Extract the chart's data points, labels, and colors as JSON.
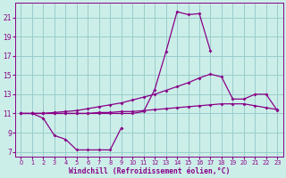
{
  "background_color": "#cceee8",
  "line_color": "#880088",
  "grid_color": "#99cccc",
  "xlabel": "Windchill (Refroidissement éolien,°C)",
  "xlim": [
    -0.5,
    23.5
  ],
  "ylim": [
    6.5,
    22.5
  ],
  "yticks": [
    7,
    9,
    11,
    13,
    15,
    17,
    19,
    21
  ],
  "xticks": [
    0,
    1,
    2,
    3,
    4,
    5,
    6,
    7,
    8,
    9,
    10,
    11,
    12,
    13,
    14,
    15,
    16,
    17,
    18,
    19,
    20,
    21,
    22,
    23
  ],
  "line1_x": [
    0,
    1,
    2,
    3,
    4,
    5,
    6,
    7,
    8,
    9,
    10,
    11,
    12,
    13,
    14,
    15,
    16,
    17
  ],
  "line1_y": [
    11.0,
    11.0,
    11.0,
    11.0,
    11.0,
    11.0,
    11.0,
    11.0,
    11.0,
    11.0,
    11.0,
    11.2,
    13.5,
    17.4,
    21.6,
    21.3,
    21.4,
    17.5
  ],
  "line2_x": [
    0,
    1,
    2,
    3,
    4,
    5,
    6,
    7,
    8,
    9,
    10,
    11,
    12,
    13,
    14,
    15,
    16,
    17,
    18,
    19,
    20,
    21,
    22,
    23
  ],
  "line2_y": [
    11.0,
    11.0,
    11.0,
    11.1,
    11.2,
    11.3,
    11.5,
    11.7,
    11.9,
    12.1,
    12.4,
    12.7,
    13.0,
    13.4,
    13.8,
    14.2,
    14.7,
    15.1,
    14.8,
    12.5,
    12.5,
    13.0,
    13.0,
    11.3
  ],
  "line3_x": [
    0,
    1,
    2,
    3,
    4,
    5,
    6,
    7,
    8,
    9,
    10,
    11,
    12,
    13,
    14,
    15,
    16,
    17,
    18,
    19,
    20,
    21,
    22,
    23
  ],
  "line3_y": [
    11.0,
    11.0,
    11.0,
    11.0,
    11.0,
    11.0,
    11.0,
    11.1,
    11.1,
    11.2,
    11.2,
    11.3,
    11.4,
    11.5,
    11.6,
    11.7,
    11.8,
    11.9,
    12.0,
    12.0,
    12.0,
    11.8,
    11.6,
    11.4
  ],
  "line4_x": [
    1,
    2,
    3,
    4,
    5,
    6,
    7,
    8,
    9
  ],
  "line4_y": [
    11.0,
    10.5,
    8.7,
    8.3,
    7.2,
    7.2,
    7.2,
    7.2,
    9.5
  ]
}
